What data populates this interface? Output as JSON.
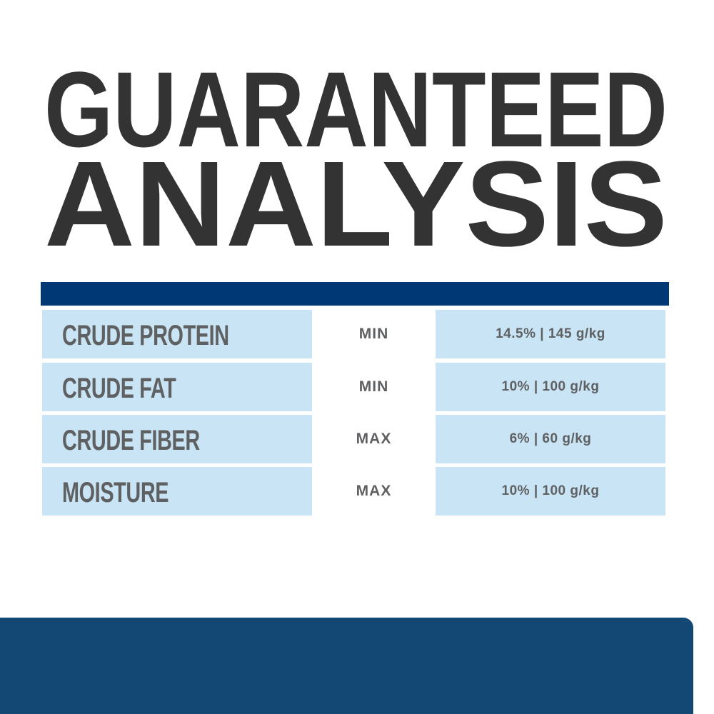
{
  "title": {
    "line1": "GUARANTEED",
    "line2": "ANALYSIS"
  },
  "colors": {
    "title": "#333333",
    "header_bar": "#003876",
    "cell": "#c9e5f5",
    "text": "#5f6062",
    "panel": "#134874"
  },
  "rows": [
    {
      "nutrient": "CRUDE PROTEIN",
      "qualifier": "MIN",
      "value": "14.5% | 145 g/kg"
    },
    {
      "nutrient": "CRUDE FAT",
      "qualifier": "MIN",
      "value": "10% | 100 g/kg"
    },
    {
      "nutrient": "CRUDE FIBER",
      "qualifier": "MAX",
      "value": "6% | 60 g/kg"
    },
    {
      "nutrient": "MOISTURE",
      "qualifier": "MAX",
      "value": "10% | 100 g/kg"
    }
  ]
}
